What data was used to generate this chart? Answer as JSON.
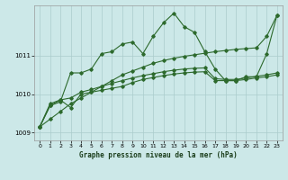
{
  "xlabel": "Graphe pression niveau de la mer (hPa)",
  "bg_color": "#cce8e8",
  "grid_color": "#aacccc",
  "line_color": "#2d6a2d",
  "ylim": [
    1008.8,
    1012.3
  ],
  "xlim": [
    -0.5,
    23.5
  ],
  "yticks": [
    1009,
    1010,
    1011
  ],
  "xticks": [
    0,
    1,
    2,
    3,
    4,
    5,
    6,
    7,
    8,
    9,
    10,
    11,
    12,
    13,
    14,
    15,
    16,
    17,
    18,
    19,
    20,
    21,
    22,
    23
  ],
  "series_jagged": [
    1009.15,
    1009.7,
    1009.8,
    1010.55,
    1010.55,
    1010.65,
    1011.05,
    1011.1,
    1011.3,
    1011.35,
    1011.05,
    1011.5,
    1011.85,
    1012.1,
    1011.75,
    1011.6,
    1011.1,
    1010.65,
    1010.35,
    1010.35,
    1010.45,
    1010.45,
    1011.05,
    1012.05
  ],
  "series_diagonal": [
    1009.15,
    1009.35,
    1009.55,
    1009.75,
    1009.9,
    1010.05,
    1010.2,
    1010.35,
    1010.5,
    1010.6,
    1010.7,
    1010.8,
    1010.87,
    1010.93,
    1010.98,
    1011.02,
    1011.06,
    1011.1,
    1011.13,
    1011.16,
    1011.18,
    1011.2,
    1011.5,
    1012.05
  ],
  "series_flat1": [
    1009.15,
    1009.7,
    1009.85,
    1009.65,
    1010.0,
    1010.05,
    1010.1,
    1010.15,
    1010.2,
    1010.3,
    1010.38,
    1010.43,
    1010.48,
    1010.52,
    1010.55,
    1010.57,
    1010.58,
    1010.35,
    1010.35,
    1010.35,
    1010.38,
    1010.42,
    1010.45,
    1010.5
  ],
  "series_flat2": [
    1009.15,
    1009.75,
    1009.85,
    1009.9,
    1010.05,
    1010.12,
    1010.2,
    1010.28,
    1010.35,
    1010.42,
    1010.48,
    1010.53,
    1010.58,
    1010.62,
    1010.65,
    1010.67,
    1010.68,
    1010.4,
    1010.38,
    1010.38,
    1010.42,
    1010.46,
    1010.5,
    1010.55
  ]
}
